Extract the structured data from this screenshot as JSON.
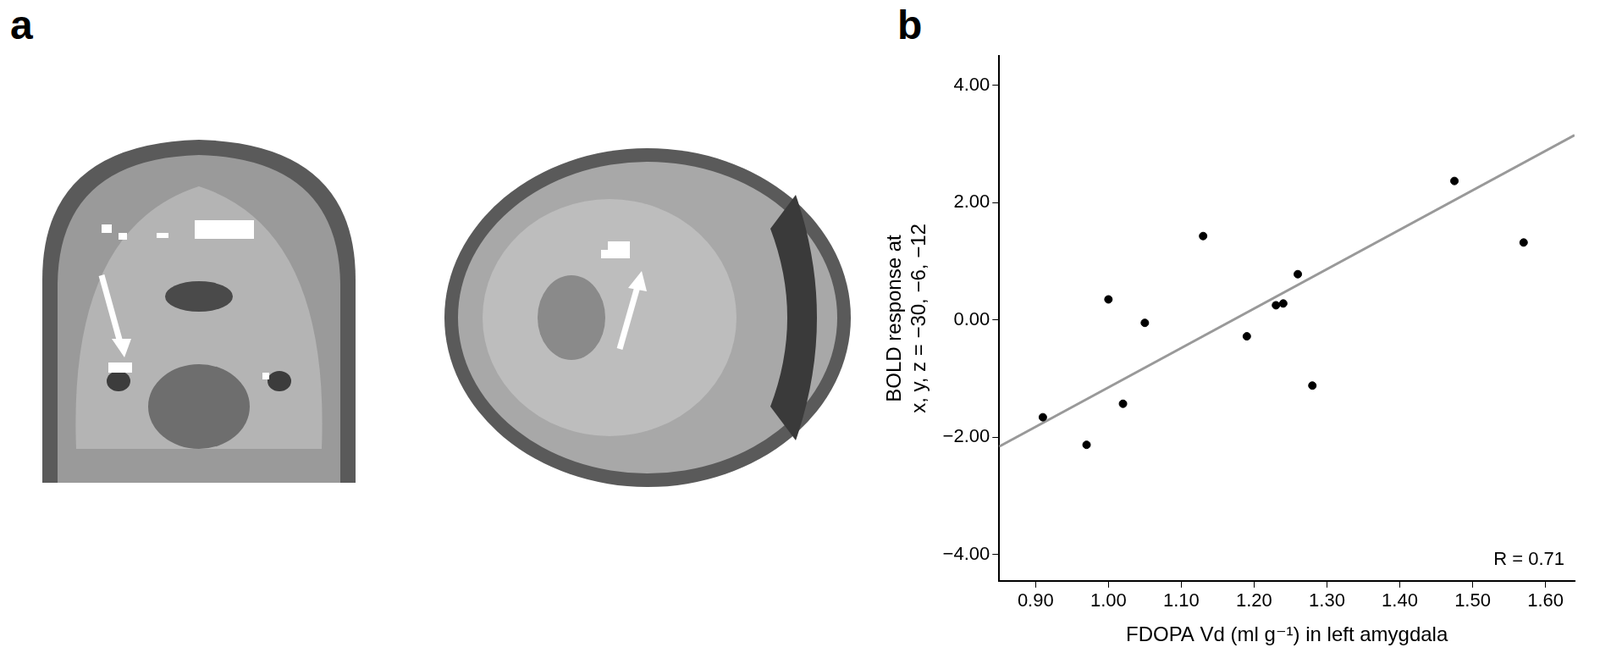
{
  "panel_labels": [
    "a",
    "b"
  ],
  "chart_data": {
    "type": "scatter",
    "x_label": "FDOPA Vd (ml g⁻¹) in left amygdala",
    "y_label": [
      "BOLD response at",
      "x, y, z = −30, −6, −12"
    ],
    "annotations": [
      "R = 0.71"
    ],
    "x": [
      0.91,
      0.97,
      1.0,
      1.02,
      1.05,
      1.13,
      1.19,
      1.23,
      1.24,
      1.26,
      1.28,
      1.475,
      1.57
    ],
    "values": [
      -1.66,
      -2.13,
      0.35,
      -1.43,
      -0.05,
      1.43,
      -0.28,
      0.25,
      0.28,
      0.78,
      -1.12,
      2.37,
      1.32
    ],
    "color": "#000000",
    "marker": "circle",
    "fit_line": {
      "x": [
        0.85,
        1.64
      ],
      "y": [
        -2.16,
        3.15
      ],
      "color": "#999999",
      "line_style": "solid"
    },
    "xlim": [
      0.85,
      1.64
    ],
    "xticks": [
      {
        "value": 0.9,
        "label": "0.90"
      },
      {
        "value": 1.0,
        "label": "1.00"
      },
      {
        "value": 1.1,
        "label": "1.10"
      },
      {
        "value": 1.2,
        "label": "1.20"
      },
      {
        "value": 1.3,
        "label": "1.30"
      },
      {
        "value": 1.4,
        "label": "1.40"
      },
      {
        "value": 1.5,
        "label": "1.50"
      },
      {
        "value": 1.6,
        "label": "1.60"
      }
    ],
    "ylim": [
      -4.45,
      4.5
    ],
    "yticks": [
      {
        "value": -4,
        "label": "−4.00"
      },
      {
        "value": -2,
        "label": "−2.00"
      },
      {
        "value": 0,
        "label": "0.00"
      },
      {
        "value": 2,
        "label": "2.00"
      },
      {
        "value": 4,
        "label": "4.00"
      }
    ],
    "grid": false,
    "legend": false
  }
}
